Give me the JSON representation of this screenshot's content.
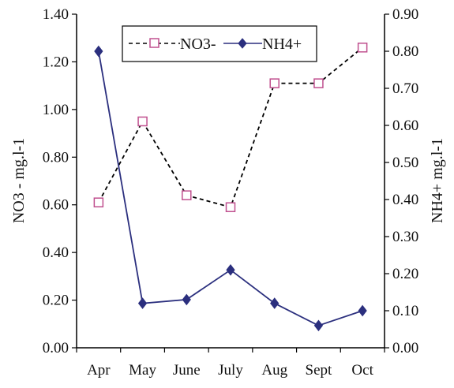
{
  "chart_data": {
    "type": "line",
    "categories": [
      "Apr",
      "May",
      "June",
      "July",
      "Aug",
      "Sept",
      "Oct"
    ],
    "series": [
      {
        "name": "NO3-",
        "axis": "left",
        "values": [
          0.61,
          0.95,
          0.64,
          0.59,
          1.11,
          1.11,
          1.26
        ],
        "color": "#c0508f",
        "line_color": "#000000",
        "line_style": "dashed",
        "marker": "open-square"
      },
      {
        "name": "NH4+",
        "axis": "right",
        "values": [
          0.8,
          0.12,
          0.13,
          0.21,
          0.12,
          0.06,
          0.1
        ],
        "color": "#2b2f7e",
        "line_color": "#2b2f7e",
        "line_style": "solid",
        "marker": "filled-diamond"
      }
    ],
    "ylabel": "NO3 - mg.l-1",
    "y2label": "NH4+ mg.l-1",
    "ylim": [
      0,
      1.4
    ],
    "y2lim": [
      0,
      0.9
    ],
    "yticks": [
      "0.00",
      "0.20",
      "0.40",
      "0.60",
      "0.80",
      "1.00",
      "1.20",
      "1.40"
    ],
    "y2ticks": [
      "0.00",
      "0.10",
      "0.20",
      "0.30",
      "0.40",
      "0.50",
      "0.60",
      "0.70",
      "0.80",
      "0.90"
    ],
    "grid": false,
    "legend_position": "top-center"
  }
}
